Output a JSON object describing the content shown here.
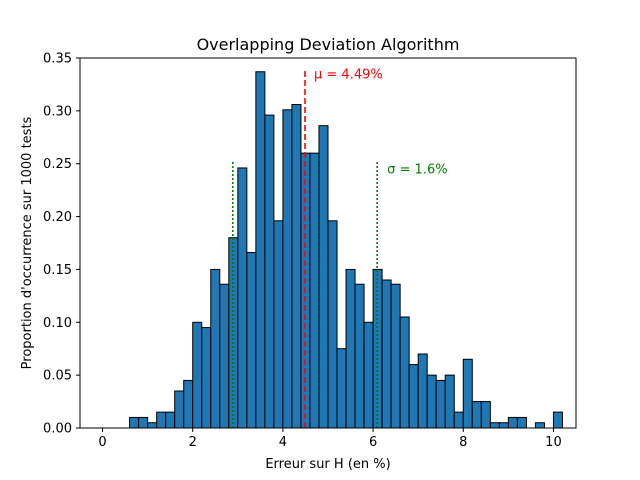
{
  "chart_data": {
    "type": "bar",
    "title": "Overlapping Deviation Algorithm",
    "xlabel": "Erreur sur H (en %)",
    "ylabel": "Proportion d'occurrence sur 1000 tests",
    "xlim": [
      -0.5,
      10.5
    ],
    "ylim": [
      0,
      0.35
    ],
    "xticks": [
      0,
      2,
      4,
      6,
      8,
      10
    ],
    "xtick_labels": [
      "0",
      "2",
      "4",
      "6",
      "8",
      "10"
    ],
    "yticks": [
      0.0,
      0.05,
      0.1,
      0.15,
      0.2,
      0.25,
      0.3,
      0.35
    ],
    "ytick_labels": [
      "0.00",
      "0.05",
      "0.10",
      "0.15",
      "0.20",
      "0.25",
      "0.30",
      "0.35"
    ],
    "bin_edges_start": 0,
    "bin_width": 0.2,
    "values": [
      0,
      0,
      0,
      0.01,
      0.01,
      0.005,
      0.015,
      0.015,
      0.035,
      0.045,
      0.1,
      0.095,
      0.15,
      0.136,
      0.18,
      0.246,
      0.166,
      0.337,
      0.296,
      0.196,
      0.301,
      0.306,
      0.26,
      0.26,
      0.286,
      0.196,
      0.075,
      0.15,
      0.136,
      0.1,
      0.15,
      0.14,
      0.136,
      0.105,
      0.06,
      0.07,
      0.05,
      0.045,
      0.05,
      0.015,
      0.065,
      0.025,
      0.025,
      0.005,
      0.005,
      0.01,
      0.01,
      0,
      0.005,
      0,
      0.015
    ],
    "bar_color": "#1f77b4",
    "edge_color": "#000000",
    "grid": false,
    "annotations": {
      "mean": {
        "label": "μ = 4.49%",
        "x": 4.49,
        "y_top": 0.338,
        "color": "#ff0000",
        "style": "dashed"
      },
      "sigma": {
        "label": "σ = 1.6%",
        "x_lines": [
          2.89,
          6.09
        ],
        "y_top": 0.252,
        "color": "#008000",
        "style": "dotted"
      }
    }
  }
}
